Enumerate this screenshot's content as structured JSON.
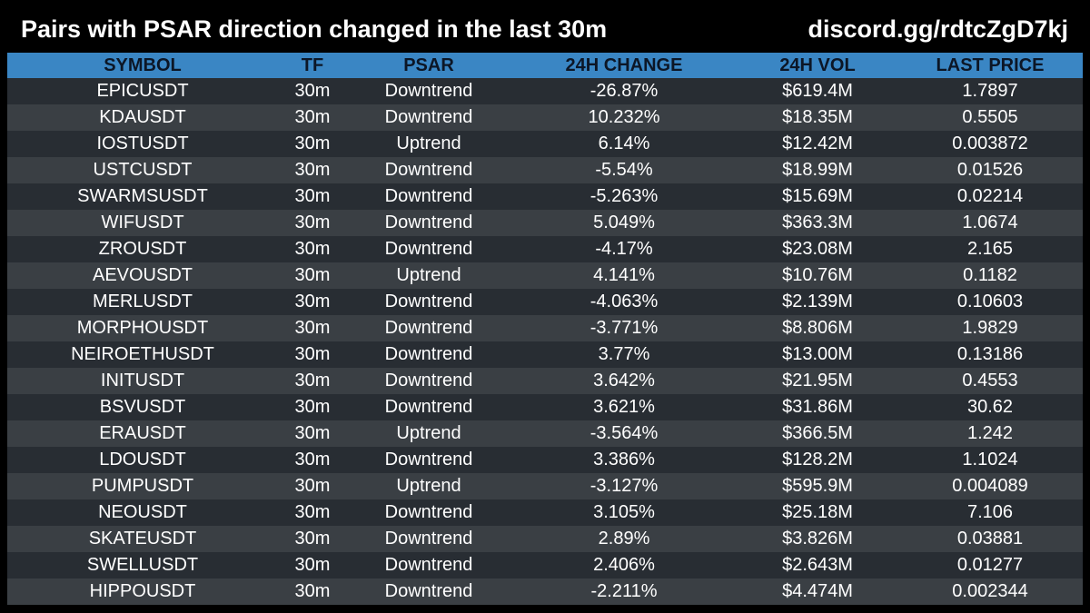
{
  "header": {
    "title": "Pairs with PSAR direction changed in the last 30m",
    "discord": "discord.gg/rdtcZgD7kj"
  },
  "colors": {
    "background": "#000000",
    "header_row": "#3a86c4",
    "row_dark": "#282d33",
    "row_light": "#3a3f44",
    "text": "#ffffff"
  },
  "table": {
    "columns": [
      "SYMBOL",
      "TF",
      "PSAR",
      "24H CHANGE",
      "24H VOL",
      "LAST PRICE"
    ],
    "rows": [
      [
        "EPICUSDT",
        "30m",
        "Downtrend",
        "-26.87%",
        "$619.4M",
        "1.7897"
      ],
      [
        "KDAUSDT",
        "30m",
        "Downtrend",
        "10.232%",
        "$18.35M",
        "0.5505"
      ],
      [
        "IOSTUSDT",
        "30m",
        "Uptrend",
        "6.14%",
        "$12.42M",
        "0.003872"
      ],
      [
        "USTCUSDT",
        "30m",
        "Downtrend",
        "-5.54%",
        "$18.99M",
        "0.01526"
      ],
      [
        "SWARMSUSDT",
        "30m",
        "Downtrend",
        "-5.263%",
        "$15.69M",
        "0.02214"
      ],
      [
        "WIFUSDT",
        "30m",
        "Downtrend",
        "5.049%",
        "$363.3M",
        "1.0674"
      ],
      [
        "ZROUSDT",
        "30m",
        "Downtrend",
        "-4.17%",
        "$23.08M",
        "2.165"
      ],
      [
        "AEVOUSDT",
        "30m",
        "Uptrend",
        "4.141%",
        "$10.76M",
        "0.1182"
      ],
      [
        "MERLUSDT",
        "30m",
        "Downtrend",
        "-4.063%",
        "$2.139M",
        "0.10603"
      ],
      [
        "MORPHOUSDT",
        "30m",
        "Downtrend",
        "-3.771%",
        "$8.806M",
        "1.9829"
      ],
      [
        "NEIROETHUSDT",
        "30m",
        "Downtrend",
        "3.77%",
        "$13.00M",
        "0.13186"
      ],
      [
        "INITUSDT",
        "30m",
        "Downtrend",
        "3.642%",
        "$21.95M",
        "0.4553"
      ],
      [
        "BSVUSDT",
        "30m",
        "Downtrend",
        "3.621%",
        "$31.86M",
        "30.62"
      ],
      [
        "ERAUSDT",
        "30m",
        "Uptrend",
        "-3.564%",
        "$366.5M",
        "1.242"
      ],
      [
        "LDOUSDT",
        "30m",
        "Downtrend",
        "3.386%",
        "$128.2M",
        "1.1024"
      ],
      [
        "PUMPUSDT",
        "30m",
        "Uptrend",
        "-3.127%",
        "$595.9M",
        "0.004089"
      ],
      [
        "NEOUSDT",
        "30m",
        "Downtrend",
        "3.105%",
        "$25.18M",
        "7.106"
      ],
      [
        "SKATEUSDT",
        "30m",
        "Downtrend",
        "2.89%",
        "$3.826M",
        "0.03881"
      ],
      [
        "SWELLUSDT",
        "30m",
        "Downtrend",
        "2.406%",
        "$2.643M",
        "0.01277"
      ],
      [
        "HIPPOUSDT",
        "30m",
        "Downtrend",
        "-2.211%",
        "$4.474M",
        "0.002344"
      ]
    ]
  }
}
